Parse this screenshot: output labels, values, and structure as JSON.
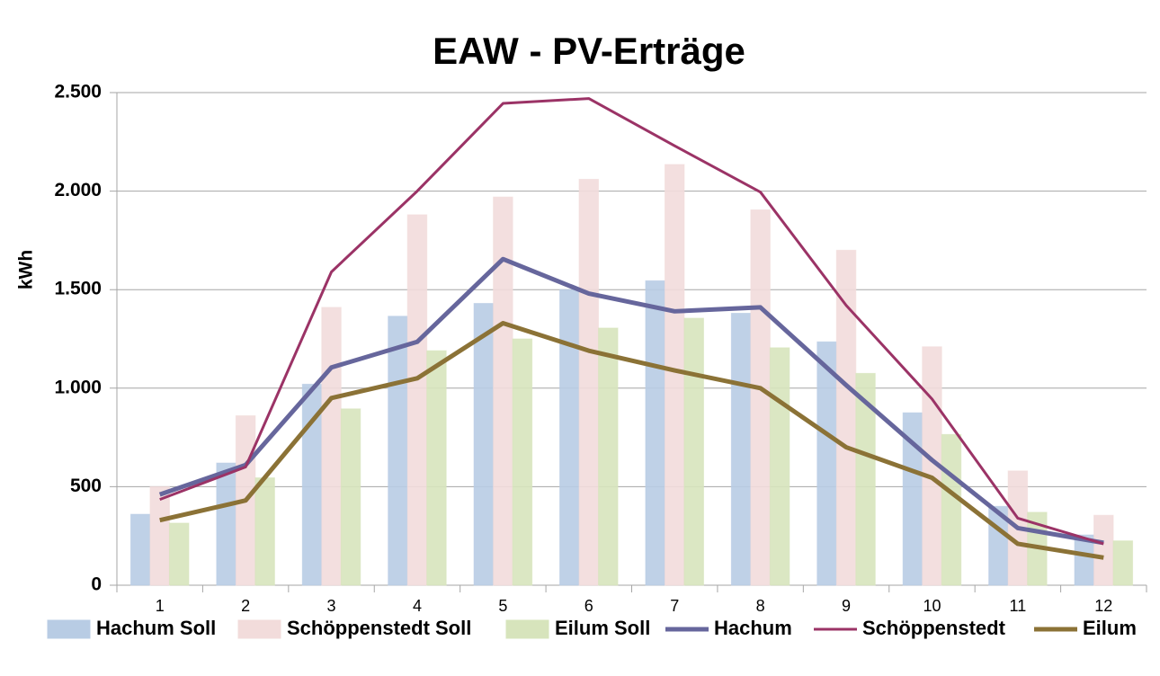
{
  "chart_data": {
    "type": "bar",
    "title": "EAW - PV-Erträge",
    "y_label": "kWh",
    "categories": [
      "1",
      "2",
      "3",
      "4",
      "5",
      "6",
      "7",
      "8",
      "9",
      "10",
      "11",
      "12"
    ],
    "series": [
      {
        "name": "Hachum Soll",
        "type": "bar",
        "color": "#b8cce4",
        "values": [
          360,
          620,
          1020,
          1365,
          1430,
          1500,
          1545,
          1380,
          1235,
          875,
          400,
          255
        ]
      },
      {
        "name": "Schöppenstedt Soll",
        "type": "bar",
        "color": "#f2dcdb",
        "values": [
          500,
          860,
          1410,
          1880,
          1970,
          2060,
          2135,
          1905,
          1700,
          1210,
          580,
          355
        ]
      },
      {
        "name": "Eilum Soll",
        "type": "bar",
        "color": "#d7e4bc",
        "values": [
          315,
          545,
          895,
          1190,
          1250,
          1305,
          1355,
          1205,
          1075,
          765,
          370,
          225
        ]
      },
      {
        "name": "Hachum",
        "type": "line",
        "color": "#66669c",
        "values": [
          460,
          610,
          1105,
          1235,
          1655,
          1480,
          1390,
          1410,
          1015,
          635,
          290,
          215
        ]
      },
      {
        "name": "Schöppenstedt",
        "type": "line",
        "color": "#9b3366",
        "values": [
          435,
          600,
          1590,
          2000,
          2445,
          2470,
          2230,
          1995,
          1420,
          945,
          340,
          210
        ]
      },
      {
        "name": "Eilum",
        "type": "line",
        "color": "#8b7236",
        "values": [
          330,
          430,
          950,
          1050,
          1330,
          1190,
          1090,
          1000,
          700,
          545,
          210,
          140
        ]
      }
    ],
    "ylim": [
      0,
      2500
    ],
    "yticks": [
      0,
      500,
      {
        "value": 1000,
        "label": "1.000"
      },
      {
        "value": 1500,
        "label": "1.500"
      },
      {
        "value": 2000,
        "label": "2.000"
      },
      {
        "value": 2500,
        "label": "2.500"
      }
    ],
    "grid": true,
    "legend": "bottom"
  }
}
